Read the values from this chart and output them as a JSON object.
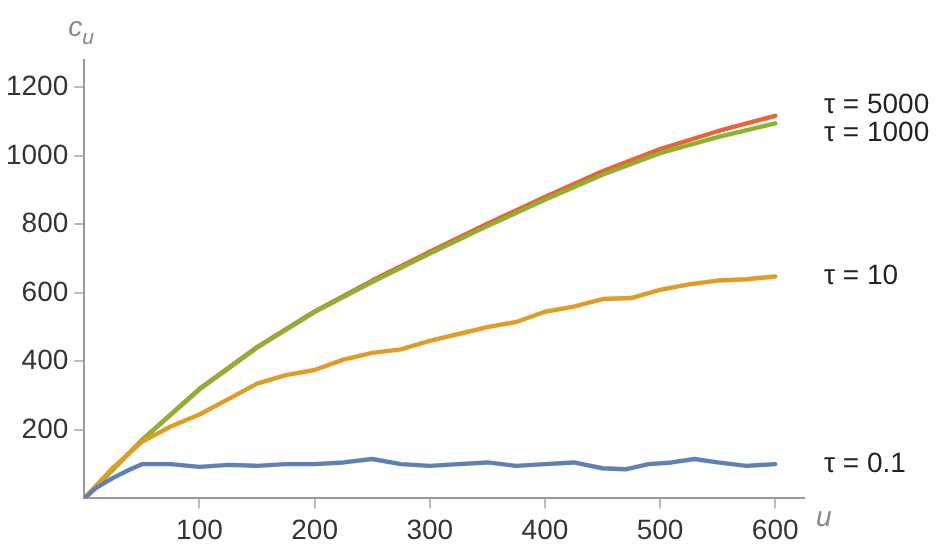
{
  "chart_data": {
    "type": "line",
    "xlabel": "u",
    "ylabel": "c$_{u}$",
    "xlim": [
      0,
      625
    ],
    "ylim": [
      0,
      1280
    ],
    "xticks": [
      100,
      200,
      300,
      400,
      500,
      600
    ],
    "yticks": [
      200,
      400,
      600,
      800,
      1000,
      1200
    ],
    "grid": false,
    "legend": false,
    "marker": "none",
    "line_style": "solid",
    "series": [
      {
        "name": "τ = 0.1",
        "color": "#5e81b5",
        "x": [
          0,
          10,
          25,
          40,
          50,
          75,
          100,
          125,
          150,
          175,
          200,
          225,
          250,
          275,
          300,
          325,
          350,
          375,
          400,
          425,
          450,
          470,
          490,
          510,
          530,
          550,
          575,
          600
        ],
        "values": [
          0,
          30,
          60,
          85,
          100,
          100,
          92,
          98,
          95,
          100,
          100,
          105,
          115,
          100,
          95,
          100,
          105,
          95,
          100,
          105,
          88,
          85,
          100,
          105,
          115,
          105,
          95,
          100
        ]
      },
      {
        "name": "τ = 10",
        "color": "#e19c24",
        "x": [
          0,
          25,
          50,
          75,
          100,
          125,
          150,
          175,
          200,
          225,
          250,
          275,
          300,
          325,
          350,
          375,
          400,
          425,
          450,
          475,
          500,
          525,
          550,
          575,
          600
        ],
        "values": [
          0,
          90,
          165,
          210,
          245,
          290,
          335,
          360,
          375,
          405,
          425,
          435,
          460,
          480,
          500,
          515,
          545,
          560,
          582,
          585,
          609,
          625,
          636,
          640,
          648
        ]
      },
      {
        "name": "τ = 1000",
        "color": "#8fb032",
        "x": [
          0,
          50,
          100,
          150,
          200,
          250,
          300,
          350,
          400,
          450,
          500,
          550,
          600
        ],
        "values": [
          0,
          170,
          318,
          440,
          544,
          632,
          715,
          795,
          872,
          945,
          1008,
          1055,
          1095
        ]
      },
      {
        "name": "τ = 5000",
        "color": "#eb6235",
        "x": [
          0,
          50,
          100,
          150,
          200,
          250,
          300,
          350,
          400,
          450,
          500,
          550,
          600
        ],
        "values": [
          0,
          170,
          320,
          442,
          546,
          636,
          720,
          802,
          880,
          955,
          1020,
          1072,
          1117
        ]
      }
    ]
  }
}
